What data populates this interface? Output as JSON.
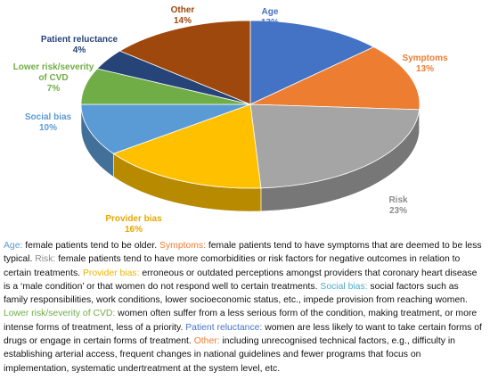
{
  "chart_data": {
    "type": "pie",
    "style": "3d",
    "categories": [
      "Age",
      "Symptoms",
      "Risk",
      "Provider bias",
      "Social bias",
      "Lower risk/severity of CVD",
      "Patient reluctance",
      "Other"
    ],
    "values": [
      13,
      13,
      23,
      16,
      10,
      7,
      4,
      14
    ],
    "value_labels": [
      "13%",
      "13%",
      "23%",
      "16%",
      "10%",
      "7%",
      "4%",
      "14%"
    ],
    "label_lines": [
      [
        "Age"
      ],
      [
        "Symptoms"
      ],
      [
        "Risk"
      ],
      [
        "Provider bias"
      ],
      [
        "Social bias"
      ],
      [
        "Lower risk/severity",
        "of CVD"
      ],
      [
        "Patient reluctance"
      ],
      [
        "Other"
      ]
    ],
    "colors": [
      "#4472C4",
      "#ED7D31",
      "#A5A5A5",
      "#FFC000",
      "#5B9BD5",
      "#70AD47",
      "#264478",
      "#9E480E"
    ],
    "label_colors": [
      "#4472C4",
      "#ED7D31",
      "#8C8C8C",
      "#E6A800",
      "#5B9BD5",
      "#70AD47",
      "#264478",
      "#9E480E"
    ],
    "legend": "none"
  },
  "caption": [
    {
      "term": "Age:",
      "text": " female patients tend to be older. ",
      "color": "#5B9BD5"
    },
    {
      "term": "Symptoms:",
      "text": " female patients tend to have symptoms that are deemed to be less typical. ",
      "color": "#ED7D31"
    },
    {
      "term": "Risk:",
      "text": " female patients tend to have more comorbidities or risk factors for negative outcomes in relation to certain treatments. ",
      "color": "#8C8C8C"
    },
    {
      "term": "Provider bias:",
      "text": " erroneous or outdated perceptions amongst providers that coronary heart disease is a ‘male condition’ or that women do not respond well to certain treatments. ",
      "color": "#F0B400"
    },
    {
      "term": "Social bias:",
      "text": " social factors such as family responsibilities, work conditions, lower socioeconomic status, etc., impede provision from reaching women. ",
      "color": "#4BACC6"
    },
    {
      "term": "Lower risk/severity of CVD:",
      "text": " women often suffer from a less serious form of the condition, making treatment, or more intense forms of treatment, less of a priority. ",
      "color": "#70AD47"
    },
    {
      "term": "Patient reluctance:",
      "text": " women are less likely to want to take certain forms of drugs or engage in certain forms of treatment. ",
      "color": "#4472C4"
    },
    {
      "term": "Other:",
      "text": " including unrecognised technical factors, e.g., difficulty in establishing arterial access, frequent changes in national guidelines and fewer programs that focus on implementation, systematic undertreatment at the system level, etc.",
      "color": "#ED7D31"
    }
  ]
}
